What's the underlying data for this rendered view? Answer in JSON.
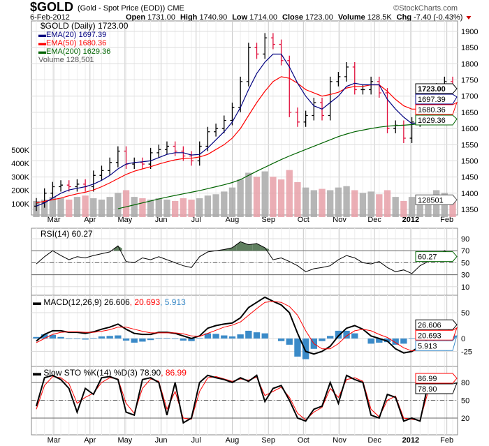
{
  "header": {
    "symbol": "$GOLD",
    "description": "(Gold - Spot Price (EOD)) CME",
    "copyright": "©StockCharts.com",
    "date": "6-Feb-2012",
    "stats": [
      {
        "label": "Open",
        "value": "1731.00"
      },
      {
        "label": "High",
        "value": "1740.90"
      },
      {
        "label": "Low",
        "value": "1714.00"
      },
      {
        "label": "Close",
        "value": "1723.00"
      },
      {
        "label": "Volume",
        "value": "128.5K"
      },
      {
        "label": "Chg",
        "value": "-7.40 (-0.43%)"
      }
    ],
    "chg_direction": "down"
  },
  "legend": {
    "price": "$GOLD (Daily) 1723.00",
    "ema20": "EMA(20) 1697.39",
    "ema50": "EMA(50) 1680.36",
    "ema200": "EMA(200) 1629.36",
    "volume": "Volume 128,501"
  },
  "colors": {
    "ema20": "#000080",
    "ema50": "#ff0000",
    "ema200": "#006400",
    "up_bar": "#000000",
    "down_bar": "#e0103c",
    "vol_up": "#a9a9a9",
    "vol_down": "#e8a0a8",
    "rsi_fill": "#5f7f5f",
    "macd_hist": "#3a8ac8",
    "signal": "#ff0000"
  },
  "chart_data": {
    "type": "line",
    "x": [
      "2011-02-14",
      "2011-02-21",
      "2011-02-28",
      "2011-03-07",
      "2011-03-14",
      "2011-03-21",
      "2011-03-28",
      "2011-04-04",
      "2011-04-11",
      "2011-04-18",
      "2011-04-25",
      "2011-05-02",
      "2011-05-09",
      "2011-05-16",
      "2011-05-23",
      "2011-05-30",
      "2011-06-06",
      "2011-06-13",
      "2011-06-20",
      "2011-06-27",
      "2011-07-04",
      "2011-07-11",
      "2011-07-18",
      "2011-07-25",
      "2011-08-01",
      "2011-08-08",
      "2011-08-15",
      "2011-08-22",
      "2011-08-29",
      "2011-09-05",
      "2011-09-12",
      "2011-09-19",
      "2011-09-26",
      "2011-10-03",
      "2011-10-10",
      "2011-10-17",
      "2011-10-24",
      "2011-10-31",
      "2011-11-07",
      "2011-11-14",
      "2011-11-21",
      "2011-11-28",
      "2011-12-05",
      "2011-12-12",
      "2011-12-19",
      "2011-12-26",
      "2012-01-02",
      "2012-01-09",
      "2012-01-16",
      "2012-01-23",
      "2012-01-30",
      "2012-02-06"
    ],
    "months": [
      {
        "label": "Mar",
        "date": "2011-03-01"
      },
      {
        "label": "Apr",
        "date": "2011-04-01"
      },
      {
        "label": "May",
        "date": "2011-05-01"
      },
      {
        "label": "Jun",
        "date": "2011-06-01"
      },
      {
        "label": "Jul",
        "date": "2011-07-01"
      },
      {
        "label": "Aug",
        "date": "2011-08-01"
      },
      {
        "label": "Sep",
        "date": "2011-09-01"
      },
      {
        "label": "Oct",
        "date": "2011-10-01"
      },
      {
        "label": "Nov",
        "date": "2011-11-01"
      },
      {
        "label": "Dec",
        "date": "2011-12-01"
      },
      {
        "label": "2012",
        "date": "2012-01-01"
      },
      {
        "label": "Feb",
        "date": "2012-02-01"
      }
    ],
    "price": {
      "ylim": [
        1320,
        1930
      ],
      "ticks": [
        1350,
        1400,
        1450,
        1500,
        1550,
        1600,
        1650,
        1700,
        1750,
        1800,
        1850,
        1900
      ],
      "close": [
        1370,
        1400,
        1420,
        1425,
        1420,
        1428,
        1420,
        1455,
        1470,
        1495,
        1530,
        1490,
        1495,
        1490,
        1525,
        1535,
        1545,
        1530,
        1515,
        1500,
        1545,
        1590,
        1600,
        1625,
        1665,
        1745,
        1850,
        1830,
        1880,
        1860,
        1810,
        1650,
        1620,
        1640,
        1680,
        1640,
        1745,
        1760,
        1790,
        1720,
        1720,
        1745,
        1710,
        1600,
        1610,
        1570,
        1620,
        1645,
        1665,
        1725,
        1745,
        1723
      ],
      "ema20": [
        1360,
        1370,
        1385,
        1400,
        1410,
        1415,
        1420,
        1428,
        1440,
        1455,
        1475,
        1490,
        1495,
        1497,
        1500,
        1510,
        1520,
        1525,
        1525,
        1518,
        1520,
        1540,
        1565,
        1590,
        1620,
        1665,
        1720,
        1770,
        1805,
        1830,
        1830,
        1790,
        1740,
        1700,
        1670,
        1660,
        1680,
        1700,
        1730,
        1740,
        1735,
        1735,
        1735,
        1690,
        1660,
        1635,
        1615,
        1620,
        1630,
        1650,
        1680,
        1697.39
      ],
      "ema50": [
        1370,
        1375,
        1380,
        1385,
        1392,
        1398,
        1403,
        1410,
        1420,
        1432,
        1445,
        1458,
        1468,
        1475,
        1482,
        1490,
        1497,
        1503,
        1507,
        1508,
        1512,
        1520,
        1535,
        1550,
        1570,
        1600,
        1640,
        1680,
        1715,
        1745,
        1760,
        1755,
        1740,
        1720,
        1710,
        1700,
        1705,
        1712,
        1725,
        1730,
        1730,
        1735,
        1735,
        1715,
        1690,
        1670,
        1660,
        1660,
        1665,
        1672,
        1678,
        1680.36
      ],
      "ema200": [
        null,
        null,
        null,
        null,
        null,
        null,
        null,
        null,
        null,
        null,
        1352,
        1358,
        1364,
        1370,
        1376,
        1382,
        1388,
        1393,
        1398,
        1403,
        1408,
        1414,
        1420,
        1426,
        1433,
        1442,
        1455,
        1468,
        1480,
        1492,
        1504,
        1515,
        1525,
        1535,
        1545,
        1555,
        1565,
        1575,
        1583,
        1590,
        1595,
        1600,
        1604,
        1607,
        1609,
        1610,
        1612,
        1615,
        1618,
        1622,
        1626,
        1629.36
      ],
      "tags": {
        "close": "1723.00",
        "ema20": "1697.39",
        "ema50": "1680.36",
        "ema200": "1629.36"
      }
    },
    "volume": {
      "unit": "K",
      "ticks": [
        "100K",
        "200K",
        "300K",
        "400K",
        "500K"
      ],
      "tick_values": [
        100,
        200,
        300,
        400,
        500
      ],
      "values": [
        120,
        130,
        150,
        140,
        130,
        150,
        160,
        140,
        130,
        150,
        180,
        200,
        150,
        140,
        130,
        140,
        130,
        120,
        140,
        130,
        140,
        160,
        170,
        190,
        220,
        280,
        330,
        300,
        340,
        300,
        280,
        350,
        260,
        220,
        200,
        210,
        200,
        220,
        230,
        200,
        180,
        190,
        170,
        200,
        150,
        120,
        150,
        140,
        160,
        200,
        180,
        128.501
      ],
      "tag": "128501"
    },
    "rsi": {
      "label": "RSI(14) 60.27",
      "ticks": [
        10,
        30,
        50,
        70,
        90
      ],
      "overbought": 70,
      "oversold": 30,
      "values": [
        48,
        60,
        70,
        62,
        55,
        60,
        58,
        62,
        65,
        68,
        78,
        52,
        50,
        58,
        55,
        60,
        55,
        50,
        45,
        42,
        60,
        68,
        70,
        72,
        75,
        85,
        80,
        82,
        75,
        55,
        58,
        52,
        45,
        35,
        40,
        42,
        45,
        55,
        62,
        58,
        50,
        48,
        52,
        42,
        35,
        38,
        32,
        45,
        52,
        55,
        70,
        60.27
      ],
      "tag": "60.27"
    },
    "macd": {
      "label": "MACD(12,26,9) 26.606",
      "signal_label": ", 20.693",
      "hist_label": ", 5.913",
      "ticks": [
        -25,
        0,
        50
      ],
      "macd": [
        -5,
        8,
        15,
        15,
        12,
        12,
        10,
        13,
        18,
        22,
        28,
        18,
        10,
        8,
        8,
        12,
        12,
        10,
        5,
        0,
        5,
        20,
        25,
        28,
        30,
        40,
        60,
        70,
        80,
        72,
        65,
        50,
        10,
        -25,
        -30,
        -25,
        -15,
        5,
        20,
        25,
        18,
        5,
        0,
        -5,
        -20,
        -28,
        -25,
        -15,
        0,
        12,
        25,
        26.606
      ],
      "signal": [
        -8,
        0,
        8,
        12,
        13,
        13,
        12,
        12,
        14,
        17,
        22,
        22,
        18,
        14,
        11,
        11,
        11,
        11,
        9,
        5,
        4,
        10,
        16,
        22,
        26,
        32,
        45,
        58,
        70,
        72,
        70,
        62,
        45,
        15,
        -10,
        -20,
        -20,
        -10,
        5,
        15,
        18,
        15,
        8,
        2,
        -8,
        -18,
        -24,
        -22,
        -12,
        0,
        12,
        20.693
      ],
      "tags": {
        "macd": "26.606",
        "signal": "20.693",
        "hist": "5.913"
      }
    },
    "sto": {
      "label": "Slow STO %K(14) %D(3) 78.90",
      "d_label": ", 86.99",
      "ticks": [
        20,
        50,
        80
      ],
      "k": [
        40,
        88,
        92,
        85,
        70,
        30,
        70,
        60,
        88,
        90,
        85,
        30,
        25,
        85,
        88,
        80,
        25,
        80,
        12,
        20,
        80,
        92,
        88,
        85,
        80,
        88,
        82,
        92,
        48,
        70,
        75,
        50,
        20,
        15,
        35,
        40,
        80,
        45,
        92,
        85,
        80,
        25,
        20,
        60,
        55,
        15,
        20,
        15,
        78,
        90,
        92,
        78.9
      ],
      "d": [
        35,
        75,
        90,
        88,
        78,
        45,
        55,
        62,
        80,
        88,
        86,
        45,
        28,
        70,
        86,
        82,
        35,
        65,
        20,
        18,
        65,
        88,
        90,
        86,
        82,
        86,
        84,
        89,
        58,
        65,
        72,
        55,
        28,
        17,
        30,
        38,
        70,
        55,
        85,
        88,
        82,
        35,
        22,
        50,
        57,
        20,
        18,
        16,
        65,
        88,
        92,
        86.99
      ],
      "tags": {
        "k": "78.90",
        "d": "86.99"
      }
    }
  }
}
